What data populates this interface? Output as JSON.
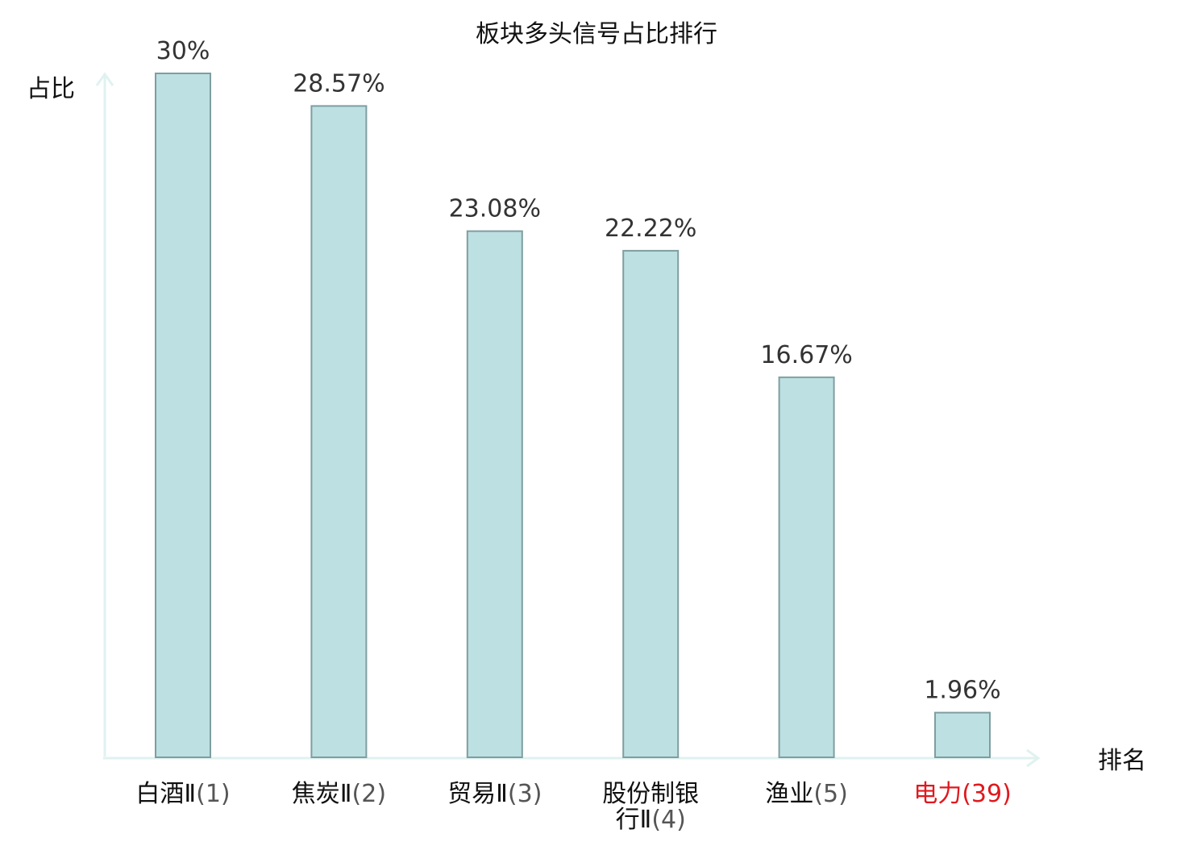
{
  "chart_data": {
    "type": "bar",
    "title": "板块多头信号占比排行",
    "ylabel": "占比",
    "xlabel": "排名",
    "ylim": [
      0,
      30
    ],
    "grid": false,
    "categories": [
      {
        "name": "白酒Ⅱ",
        "rank": "(1)",
        "highlight": false
      },
      {
        "name": "焦炭Ⅱ",
        "rank": "(2)",
        "highlight": false
      },
      {
        "name": "贸易Ⅱ",
        "rank": "(3)",
        "highlight": false
      },
      {
        "name": "股份制银行Ⅱ",
        "rank": "(4)",
        "highlight": false
      },
      {
        "name": "渔业",
        "rank": "(5)",
        "highlight": false
      },
      {
        "name": "电力",
        "rank": "(39)",
        "highlight": true
      }
    ],
    "values": [
      30,
      28.57,
      23.08,
      22.22,
      16.67,
      1.96
    ],
    "value_labels": [
      "30%",
      "28.57%",
      "23.08%",
      "22.22%",
      "16.67%",
      "1.96%"
    ],
    "colors": {
      "bar_fill": "#bde0e2",
      "bar_stroke": "#7f9ea0",
      "axis": "#e0f2f0",
      "highlight": "#e0191e",
      "rank_text": "#555555",
      "text": "#111111"
    }
  }
}
